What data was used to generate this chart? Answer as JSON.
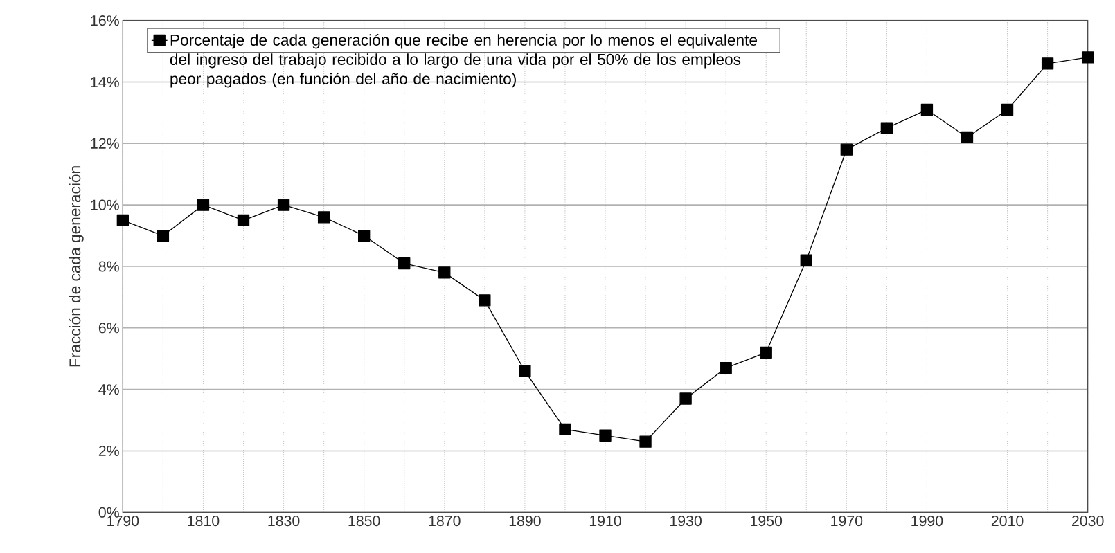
{
  "chart_data": {
    "type": "line",
    "ylabel": "Fracción de cada generación",
    "x": [
      1790,
      1800,
      1810,
      1820,
      1830,
      1840,
      1850,
      1860,
      1870,
      1880,
      1890,
      1900,
      1910,
      1920,
      1930,
      1940,
      1950,
      1960,
      1970,
      1980,
      1990,
      2000,
      2010,
      2020,
      2030
    ],
    "series": [
      {
        "name": "Porcentaje de cada generación que recibe en herencia por lo menos el equivalente del ingreso del trabajo recibido a lo largo de una vida por el 50% de los empleos peor pagados (en función del año de nacimiento)",
        "color": "#000000",
        "values": [
          9.5,
          9.0,
          10.0,
          9.5,
          10.0,
          9.6,
          9.0,
          8.1,
          7.8,
          6.9,
          4.6,
          2.7,
          2.5,
          2.3,
          3.7,
          4.7,
          5.2,
          8.2,
          11.8,
          12.5,
          13.1,
          12.2,
          13.1,
          14.6,
          14.8
        ]
      }
    ],
    "xlim": [
      1790,
      2030
    ],
    "ylim": [
      0,
      16
    ],
    "xticks": [
      1790,
      {
        "value": 1800,
        "label": null
      },
      1810,
      {
        "value": 1820,
        "label": null
      },
      1830,
      {
        "value": 1840,
        "label": null
      },
      1850,
      {
        "value": 1860,
        "label": null
      },
      1870,
      {
        "value": 1880,
        "label": null
      },
      1890,
      {
        "value": 1900,
        "label": null
      },
      1910,
      {
        "value": 1920,
        "label": null
      },
      1930,
      {
        "value": 1940,
        "label": null
      },
      1950,
      {
        "value": 1960,
        "label": null
      },
      1970,
      {
        "value": 1980,
        "label": null
      },
      1990,
      {
        "value": 2000,
        "label": null
      },
      2010,
      {
        "value": 2020,
        "label": null
      },
      2030
    ],
    "yticks": [
      {
        "value": 0,
        "label": "0%"
      },
      {
        "value": 2,
        "label": "2%"
      },
      {
        "value": 4,
        "label": "4%"
      },
      {
        "value": 6,
        "label": "6%"
      },
      {
        "value": 8,
        "label": "8%"
      },
      {
        "value": 10,
        "label": "10%"
      },
      {
        "value": 12,
        "label": "12%"
      },
      {
        "value": 14,
        "label": "14%"
      },
      {
        "value": 16,
        "label": "16%"
      }
    ],
    "grid": true,
    "legend": "top left",
    "marker": "square",
    "line_style": "solid"
  }
}
